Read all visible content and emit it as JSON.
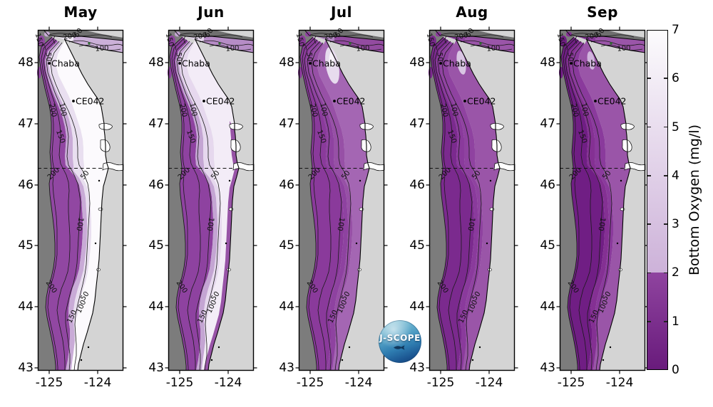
{
  "chart_data": {
    "type": "map-contour-series",
    "title": "",
    "description": "Five monthly map panels of modeled bottom oxygen along the Washington-Oregon coast with bathymetry contours and a shared colorbar",
    "panel_months": [
      "May",
      "Jun",
      "Jul",
      "Aug",
      "Sep"
    ],
    "x_axis": {
      "tick_labels": [
        "-125",
        "-124"
      ]
    },
    "y_axis": {
      "tick_labels": [
        "48",
        "47",
        "46",
        "45",
        "44",
        "43"
      ]
    },
    "depth_contour_labels": [
      "50",
      "100",
      "150",
      "200"
    ],
    "stations": [
      {
        "label": "Chaba"
      },
      {
        "label": "CE042"
      }
    ],
    "colorbar": {
      "label": "Bottom Oxygen (mg/l)",
      "tick_labels": [
        "7",
        "6",
        "5",
        "4",
        "3",
        "2",
        "1",
        "0"
      ],
      "min": 0,
      "max": 7,
      "hypoxia_threshold": 2,
      "colors": {
        "max": "#fcfbfd",
        "above_threshold": "#cdb2d9",
        "below_threshold": "#8f449f",
        "min": "#691b7c"
      }
    },
    "map_colors": {
      "land": "#d4d4d4",
      "deep_ocean_mask": "#7c7c7c",
      "island_band": "#6f6f6f",
      "estuary": "#ffffff",
      "green_marker": "#2f6d31",
      "contour_line": "#1a1a1a"
    },
    "panels": [
      {
        "month": "May",
        "bands": {
          "offshore": "#9147a2",
          "mid": "#c9abd7",
          "inner": "#e9dff0",
          "nearshore": "#fcfafd"
        },
        "strait": {
          "west": "#f0e9f5",
          "east": "#cbb0d8"
        },
        "coastal_strip": null,
        "pocket": null,
        "approx_oxygen_mgl": {
          "offshore": 1.8,
          "mid": 2.8,
          "inner": 3.8,
          "nearshore": 6.5
        }
      },
      {
        "month": "Jun",
        "bands": {
          "offshore": "#8e42a0",
          "mid": "#c4a5d3",
          "inner": "#e6d8ee",
          "nearshore": "#f3ecf7"
        },
        "strait": {
          "west": "#e3d5eb",
          "east": "#b68cc6"
        },
        "coastal_strip": "#9753a6",
        "pocket": null,
        "approx_oxygen_mgl": {
          "offshore": 1.6,
          "mid": 2.6,
          "inner": 3.4,
          "nearshore": 5.5
        }
      },
      {
        "month": "Jul",
        "bands": {
          "offshore": "#8a3a9b",
          "mid": "#8e42a0",
          "inner": "#9750a6",
          "nearshore": "#a466b3"
        },
        "strait": {
          "west": "#b288c2",
          "east": "#934ba0"
        },
        "coastal_strip": null,
        "pocket": {
          "fill": "#e7dbee",
          "core": "#f8f4fa"
        },
        "approx_oxygen_mgl": {
          "offshore": 1.3,
          "mid": 1.5,
          "inner": 1.7,
          "nearshore": 2.0
        }
      },
      {
        "month": "Aug",
        "bands": {
          "offshore": "#7b2a8e",
          "mid": "#8a3a9c",
          "inner": "#8f42a0",
          "nearshore": "#9a55a8"
        },
        "strait": {
          "west": "#8e42a0",
          "east": "#9a55a8"
        },
        "coastal_strip": null,
        "pocket": {
          "fill": "#d9c6e3"
        },
        "approx_oxygen_mgl": {
          "offshore": 0.9,
          "mid": 1.3,
          "inner": 1.5,
          "nearshore": 1.8
        }
      },
      {
        "month": "Sep",
        "bands": {
          "offshore": "#701e84",
          "mid": "#843093",
          "inner": "#8a3a9c",
          "nearshore": "#9a55a8"
        },
        "strait": {
          "west": "#8a3b9c",
          "east": "#9a55a8"
        },
        "coastal_strip": null,
        "pocket": {
          "fill": "#d0b5dc"
        },
        "approx_oxygen_mgl": {
          "offshore": 0.7,
          "mid": 1.1,
          "inner": 1.4,
          "nearshore": 1.8
        }
      }
    ]
  },
  "logo": {
    "text": "J-SCOPE"
  }
}
